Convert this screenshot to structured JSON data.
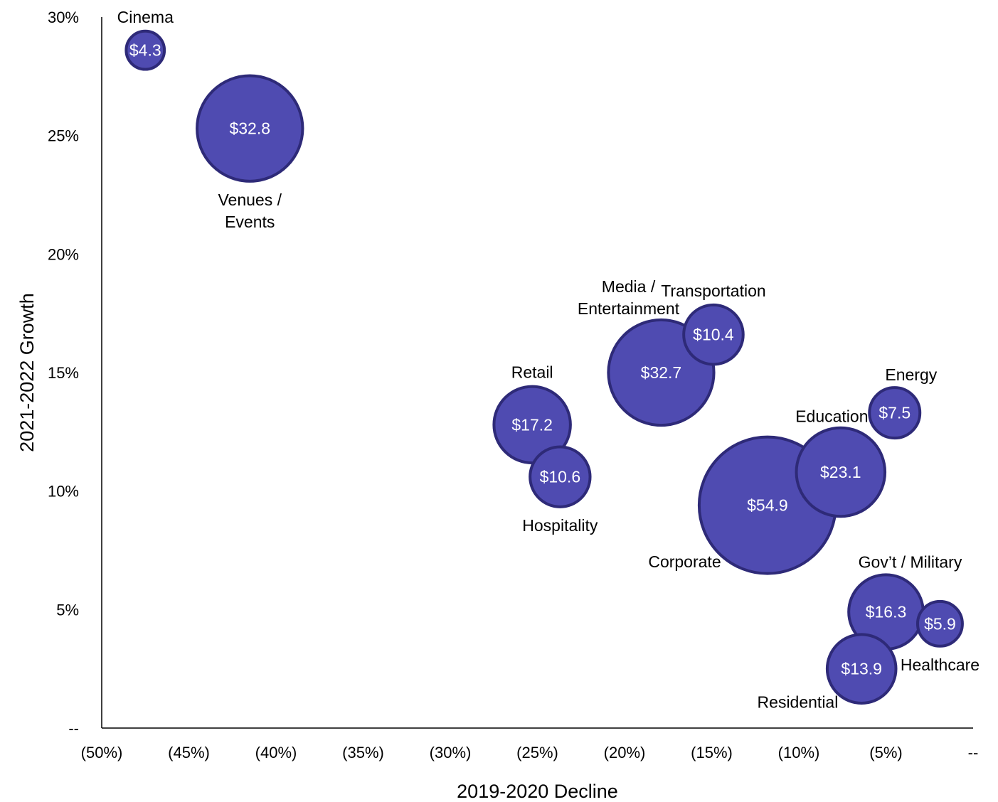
{
  "chart_data": {
    "type": "scatter",
    "subtype": "bubble",
    "xlabel": "2019-2020 Decline",
    "ylabel": "2021-2022 Growth",
    "xlim": [
      -50,
      0
    ],
    "ylim": [
      0,
      30
    ],
    "x_ticks": [
      {
        "value": -50,
        "label": "(50%)"
      },
      {
        "value": -45,
        "label": "(45%)"
      },
      {
        "value": -40,
        "label": "(40%)"
      },
      {
        "value": -35,
        "label": "(35%)"
      },
      {
        "value": -30,
        "label": "(30%)"
      },
      {
        "value": -25,
        "label": "(25%)"
      },
      {
        "value": -20,
        "label": "(20%)"
      },
      {
        "value": -15,
        "label": "(15%)"
      },
      {
        "value": -10,
        "label": "(10%)"
      },
      {
        "value": -5,
        "label": "(5%)"
      },
      {
        "value": 0,
        "label": "--"
      }
    ],
    "y_ticks": [
      {
        "value": 0,
        "label": "--"
      },
      {
        "value": 5,
        "label": "5%"
      },
      {
        "value": 10,
        "label": "10%"
      },
      {
        "value": 15,
        "label": "15%"
      },
      {
        "value": 20,
        "label": "20%"
      },
      {
        "value": 25,
        "label": "25%"
      },
      {
        "value": 30,
        "label": "30%"
      }
    ],
    "grid": false,
    "colors": {
      "bubble_fill": "#4f4bb1",
      "bubble_stroke": "#2e2a78",
      "axis": "#000000"
    },
    "points": [
      {
        "category": "Cinema",
        "label_lines": [
          "Cinema"
        ],
        "x": -47.5,
        "y": 28.6,
        "size": 4.3,
        "value_label": "$4.3",
        "label_position": "above"
      },
      {
        "category": "Venues / Events",
        "label_lines": [
          "Venues /",
          "Events"
        ],
        "x": -41.5,
        "y": 25.3,
        "size": 32.8,
        "value_label": "$32.8",
        "label_position": "below"
      },
      {
        "category": "Media / Entertainment",
        "label_lines": [
          "Media /",
          "Entertainment"
        ],
        "x": -17.9,
        "y": 15.0,
        "size": 32.7,
        "value_label": "$32.7",
        "label_position": "above-left"
      },
      {
        "category": "Transportation",
        "label_lines": [
          "Transportation"
        ],
        "x": -14.9,
        "y": 16.6,
        "size": 10.4,
        "value_label": "$10.4",
        "label_position": "above"
      },
      {
        "category": "Retail",
        "label_lines": [
          "Retail"
        ],
        "x": -25.3,
        "y": 12.8,
        "size": 17.2,
        "value_label": "$17.2",
        "label_position": "above"
      },
      {
        "category": "Hospitality",
        "label_lines": [
          "Hospitality"
        ],
        "x": -23.7,
        "y": 10.6,
        "size": 10.6,
        "value_label": "$10.6",
        "label_position": "below"
      },
      {
        "category": "Corporate",
        "label_lines": [
          "Corporate"
        ],
        "x": -11.8,
        "y": 9.4,
        "size": 54.9,
        "value_label": "$54.9",
        "label_position": "below-left"
      },
      {
        "category": "Education",
        "label_lines": [
          "Education"
        ],
        "x": -7.6,
        "y": 10.8,
        "size": 23.1,
        "value_label": "$23.1",
        "label_position": "above-left"
      },
      {
        "category": "Energy",
        "label_lines": [
          "Energy"
        ],
        "x": -4.5,
        "y": 13.3,
        "size": 7.5,
        "value_label": "$7.5",
        "label_position": "above-right"
      },
      {
        "category": "Gov't / Military",
        "label_lines": [
          "Gov’t / Military"
        ],
        "x": -5.0,
        "y": 4.9,
        "size": 16.3,
        "value_label": "$16.3",
        "label_position": "above-right"
      },
      {
        "category": "Healthcare",
        "label_lines": [
          "Healthcare"
        ],
        "x": -1.9,
        "y": 4.4,
        "size": 5.9,
        "value_label": "$5.9",
        "label_position": "below"
      },
      {
        "category": "Residential",
        "label_lines": [
          "Residential"
        ],
        "x": -6.4,
        "y": 2.5,
        "size": 13.9,
        "value_label": "$13.9",
        "label_position": "below-left"
      }
    ]
  }
}
